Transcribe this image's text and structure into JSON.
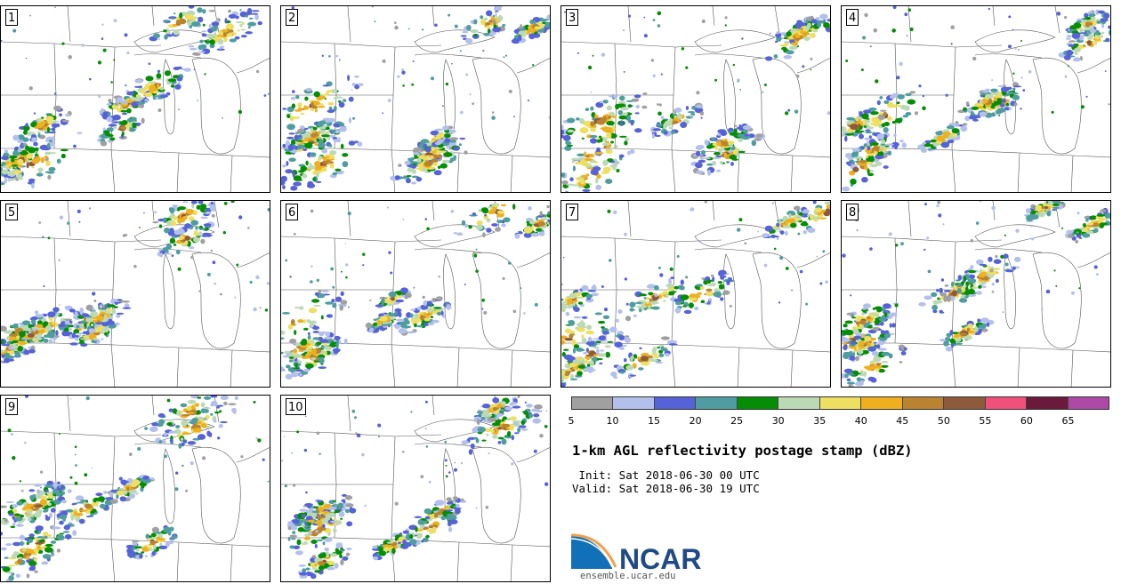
{
  "panels": [
    {
      "label": "1",
      "seed": 11
    },
    {
      "label": "2",
      "seed": 23
    },
    {
      "label": "3",
      "seed": 37
    },
    {
      "label": "4",
      "seed": 41
    },
    {
      "label": "5",
      "seed": 53
    },
    {
      "label": "6",
      "seed": 67
    },
    {
      "label": "7",
      "seed": 71
    },
    {
      "label": "8",
      "seed": 83
    },
    {
      "label": "9",
      "seed": 97
    },
    {
      "label": "10",
      "seed": 109
    }
  ],
  "colorbar": {
    "ticks": [
      "5",
      "10",
      "15",
      "20",
      "25",
      "30",
      "35",
      "40",
      "45",
      "50",
      "55",
      "60",
      "65"
    ],
    "colors": [
      "#a0a0a0",
      "#b4c0ec",
      "#5662d8",
      "#4f9da0",
      "#068d06",
      "#bcd9b6",
      "#ecdf62",
      "#eeb01e",
      "#b98330",
      "#8d5a3c",
      "#f14f7c",
      "#6a1a3a",
      "#ad4aa8"
    ]
  },
  "title": "1-km AGL reflectivity postage stamp (dBZ)",
  "init_line": " Init: Sat 2018-06-30 00 UTC",
  "valid_line": "Valid: Sat 2018-06-30 19 UTC",
  "logo_text": "NCAR",
  "url": "ensemble.ucar.edu"
}
